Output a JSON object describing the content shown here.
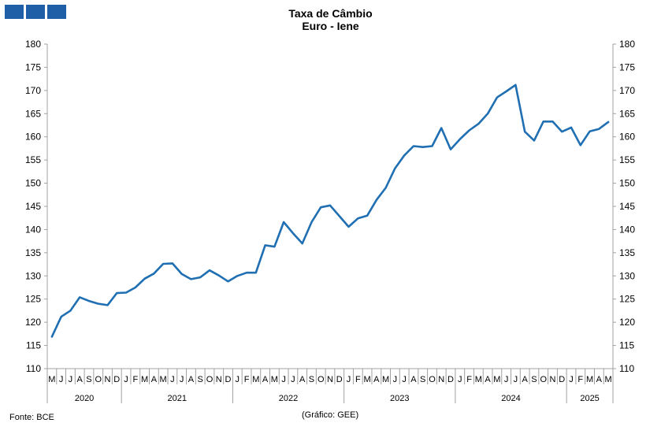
{
  "header": {
    "title": "Taxa de Câmbio",
    "subtitle": "Euro - Iene"
  },
  "footer": {
    "source": "Fonte: BCE",
    "credit": "(Gráfico: GEE)"
  },
  "colors": {
    "series": "#1f6fb2",
    "logo": "#1f5fa8",
    "axis": "#a0a0a0"
  },
  "chart_data": {
    "type": "line",
    "title": "Taxa de Câmbio Euro - Iene",
    "xlabel": "",
    "ylabel": "",
    "ylim": [
      110,
      180
    ],
    "yticks": [
      110,
      115,
      120,
      125,
      130,
      135,
      140,
      145,
      150,
      155,
      160,
      165,
      170,
      175,
      180
    ],
    "grid": false,
    "legend": "none",
    "month_labels": [
      "M",
      "J",
      "J",
      "A",
      "S",
      "O",
      "N",
      "D",
      "J",
      "F",
      "M",
      "A",
      "M",
      "J",
      "J",
      "A",
      "S",
      "O",
      "N",
      "D",
      "J",
      "F",
      "M",
      "A",
      "M",
      "J",
      "J",
      "A",
      "S",
      "O",
      "N",
      "D",
      "J",
      "F",
      "M",
      "A",
      "M",
      "J",
      "J",
      "A",
      "S",
      "O",
      "N",
      "D",
      "J",
      "F",
      "M",
      "A",
      "M",
      "J",
      "J",
      "A",
      "S",
      "O",
      "N",
      "D",
      "J",
      "F",
      "M",
      "A",
      "M"
    ],
    "year_groups": [
      {
        "year": "2020",
        "months": 8
      },
      {
        "year": "2021",
        "months": 12
      },
      {
        "year": "2022",
        "months": 12
      },
      {
        "year": "2023",
        "months": 12
      },
      {
        "year": "2024",
        "months": 12
      },
      {
        "year": "2025",
        "months": 5
      }
    ],
    "series": [
      {
        "values": [
          116.9,
          121.2,
          122.5,
          125.4,
          124.6,
          124.0,
          123.7,
          126.3,
          126.4,
          127.5,
          129.4,
          130.5,
          132.6,
          132.7,
          130.4,
          129.3,
          129.7,
          131.2,
          130.1,
          128.8,
          130.0,
          130.7,
          130.7,
          136.6,
          136.3,
          141.6,
          139.2,
          137.0,
          141.6,
          144.8,
          145.2,
          142.9,
          140.6,
          142.4,
          143.0,
          146.4,
          149.0,
          153.2,
          156.0,
          158.0,
          157.8,
          158.0,
          161.9,
          157.3,
          159.5,
          161.4,
          162.8,
          165.0,
          168.5,
          169.8,
          171.2,
          161.1,
          159.2,
          163.3,
          163.3,
          161.1,
          162.0,
          158.2,
          161.2,
          161.7,
          163.2
        ]
      }
    ]
  }
}
